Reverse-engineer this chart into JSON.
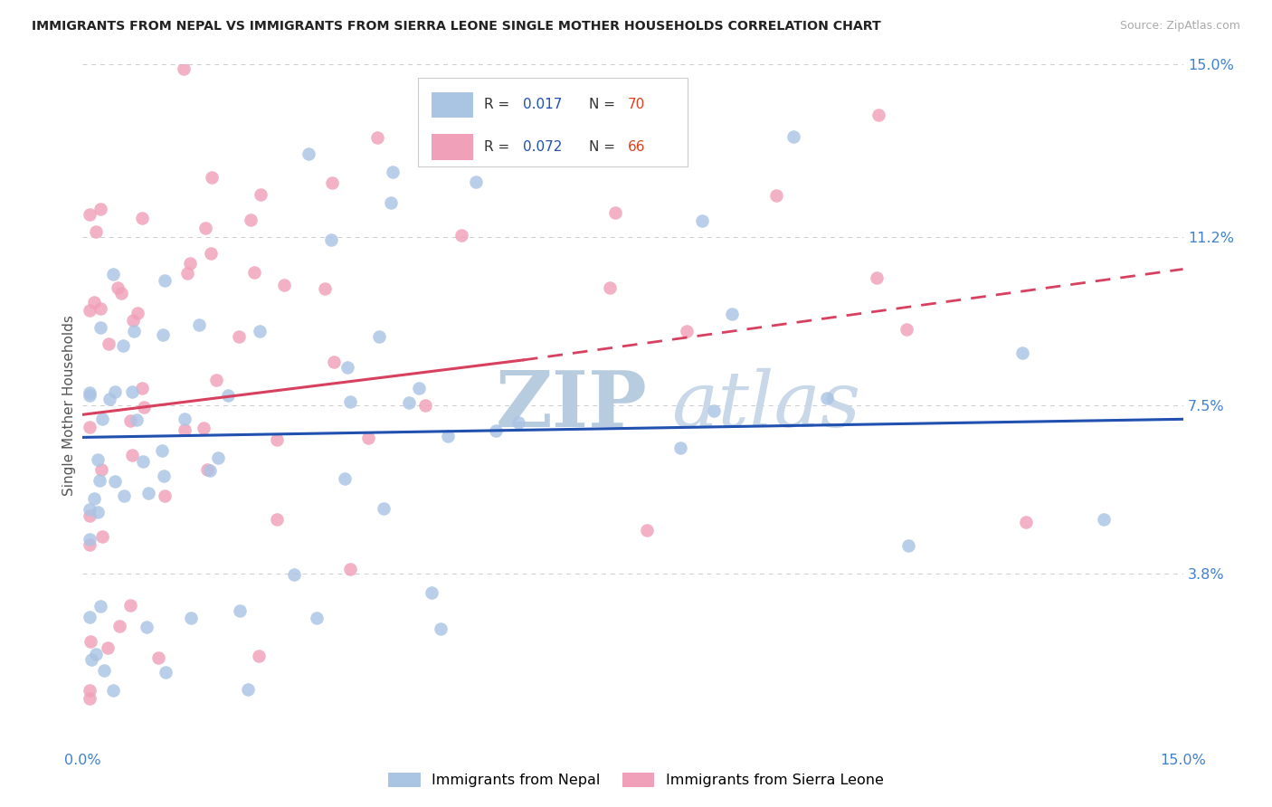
{
  "title": "IMMIGRANTS FROM NEPAL VS IMMIGRANTS FROM SIERRA LEONE SINGLE MOTHER HOUSEHOLDS CORRELATION CHART",
  "source": "Source: ZipAtlas.com",
  "ylabel": "Single Mother Households",
  "xlim": [
    0.0,
    0.15
  ],
  "ylim": [
    0.0,
    0.15
  ],
  "ytick_vals": [
    0.0,
    0.038,
    0.075,
    0.112,
    0.15
  ],
  "ytick_labels": [
    "",
    "3.8%",
    "7.5%",
    "11.2%",
    "15.0%"
  ],
  "xtick_vals": [
    0.0,
    0.05,
    0.1,
    0.15
  ],
  "xtick_labels": [
    "0.0%",
    "",
    "",
    "15.0%"
  ],
  "nepal_R": 0.017,
  "nepal_N": 70,
  "sl_R": 0.072,
  "sl_N": 66,
  "nepal_color": "#aac4e4",
  "sl_color": "#f0a0b8",
  "nepal_line_color": "#2050b0",
  "sl_line_color": "#d84060",
  "nepal_label": "Immigrants from Nepal",
  "sl_label": "Immigrants from Sierra Leone",
  "watermark_ZIP": "ZIP",
  "watermark_atlas": "atlas",
  "watermark_color_ZIP": "#b8cce0",
  "watermark_color_atlas": "#c8d8e8",
  "title_color": "#222222",
  "source_color": "#aaaaaa",
  "axis_tick_color": "#4080d0",
  "grid_color": "#cccccc",
  "legend_R_color": "#2050b0",
  "legend_N_color": "#e04020"
}
